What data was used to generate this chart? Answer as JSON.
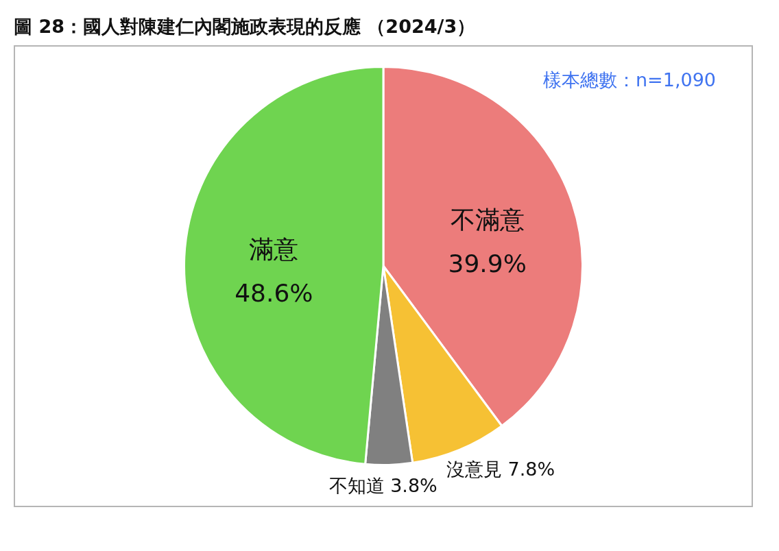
{
  "chart_data": {
    "type": "pie",
    "title": "圖 28：國人對陳建仁內閣施政表現的反應 （2024/3）",
    "categories": [
      "不滿意",
      "沒意見",
      "不知道",
      "滿意"
    ],
    "values": [
      39.9,
      7.8,
      3.8,
      48.6
    ],
    "colors": [
      "#ec7c7b",
      "#f6c134",
      "#808080",
      "#6fd450"
    ],
    "value_labels": [
      "39.9%",
      "7.8%",
      "3.8%",
      "48.6%"
    ],
    "annotations": [
      "樣本總數：n=1,090"
    ]
  }
}
